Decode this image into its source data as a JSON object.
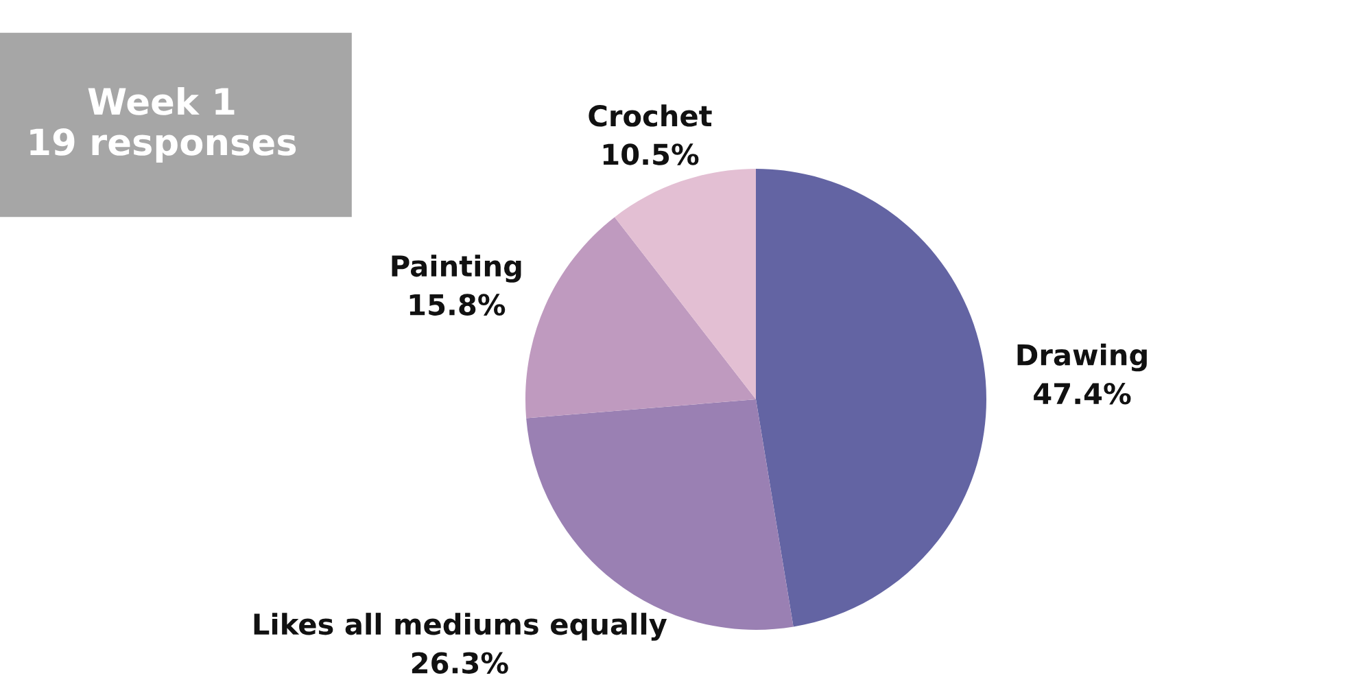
{
  "chart_data": {
    "type": "pie",
    "title": "Week 1\n19 responses",
    "categories": [
      "Drawing",
      "Likes all mediums equally",
      "Painting",
      "Crochet"
    ],
    "values": [
      47.4,
      26.3,
      15.8,
      10.5
    ],
    "value_labels": [
      "47.4%",
      "26.3%",
      "15.8%",
      "10.5%"
    ],
    "colors": [
      "#6364a3",
      "#9a80b3",
      "#bf9abf",
      "#e3bfd3"
    ],
    "legend": false
  }
}
